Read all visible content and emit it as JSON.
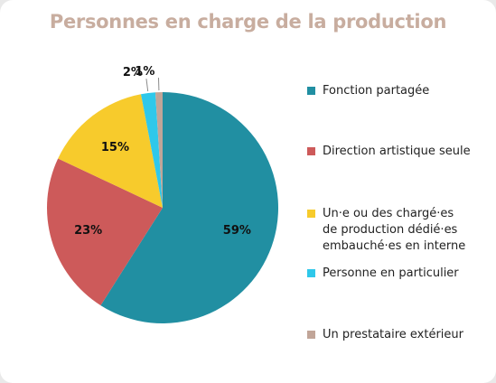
{
  "chart_data": {
    "type": "pie",
    "title": "Personnes en charge de la production",
    "series": [
      {
        "name": "Fonction partagée",
        "value": 59,
        "label": "59%",
        "color": "#218fa2"
      },
      {
        "name": "Direction artistique seule",
        "value": 23,
        "label": "23%",
        "color": "#cd5a5a"
      },
      {
        "name": "Un·e ou des chargé·es de production dédié·es embauché·es en interne",
        "value": 15,
        "label": "15%",
        "color": "#f7cb2c"
      },
      {
        "name": "Personne en particulier",
        "value": 2,
        "label": "2%",
        "color": "#2fc8ea"
      },
      {
        "name": "Un prestataire extérieur",
        "value": 1,
        "label": "1%",
        "color": "#c1a598"
      }
    ],
    "legend": [
      {
        "lines": [
          "Fonction partagée"
        ]
      },
      {
        "lines": [
          "Direction artistique seule"
        ]
      },
      {
        "lines": [
          "Un·e ou des chargé·es",
          "de production dédié·es",
          "embauché·es en interne"
        ]
      },
      {
        "lines": [
          "Personne en particulier"
        ]
      },
      {
        "lines": [
          "Un prestataire extérieur"
        ]
      }
    ],
    "legend_position": "right"
  }
}
